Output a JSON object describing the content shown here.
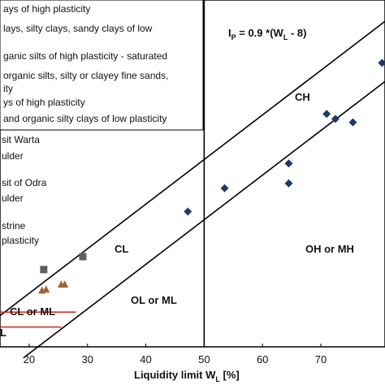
{
  "chart_data": {
    "type": "scatter",
    "title": "",
    "xlabel": "Liquidity limit  W_L [%]",
    "xlabel_main": "Liquidity limit  W",
    "xlabel_sub": "L",
    "xlabel_tail": " [%]",
    "ylabel": "",
    "xlim": [
      15,
      81
    ],
    "ylim": [
      0,
      70
    ],
    "x_ticks": [
      "20",
      "30",
      "40",
      "50",
      "60",
      "70"
    ],
    "x_tick_values": [
      20,
      30,
      40,
      50,
      60,
      70
    ],
    "grid": false,
    "vertical_line_x": 50,
    "a_line": {
      "label_prefix": "I",
      "label_sub": "P",
      "label_rest": " = 0.9 *(W",
      "label_sub2": "L",
      "label_end": " - 8)",
      "slope": 0.9,
      "offset": 8
    },
    "zones": [
      "CH",
      "CL",
      "OH or MH",
      "OL or ML",
      "CL or ML",
      "L"
    ],
    "legend": [
      "ays of high plasticity",
      "lays, silty clays, sandy clays of low",
      "ganic silts of high plasticity - saturated",
      "organic silts, silty or clayey fine sands,",
      "ity",
      "ys of high plasticity",
      "and organic silty clays of low plasticity"
    ],
    "side_labels": [
      "sit Warta",
      "ulder",
      "sit of Odra",
      "ulder",
      "strine",
      "plasticity"
    ],
    "series": [
      {
        "marker": "diamond",
        "color": "#1f3a68",
        "points": [
          [
            47.2,
            27.3
          ],
          [
            53.5,
            32.0
          ],
          [
            64.5,
            33.0
          ],
          [
            64.5,
            37.0
          ],
          [
            71.0,
            47.0
          ],
          [
            72.5,
            46.0
          ],
          [
            75.5,
            45.3
          ],
          [
            80.5,
            57.3
          ]
        ]
      },
      {
        "marker": "square",
        "color": "#5f5f5f",
        "points": [
          [
            22.5,
            15.6
          ],
          [
            29.2,
            18.2
          ]
        ]
      },
      {
        "marker": "triangle",
        "color": "#a0643a",
        "points": [
          [
            22.2,
            11.4
          ],
          [
            22.9,
            11.6
          ],
          [
            25.5,
            12.6
          ],
          [
            26.1,
            12.6
          ]
        ]
      }
    ],
    "red_segments": [
      {
        "x1": 15,
        "x2": 28,
        "y": 7
      },
      {
        "x1": 15,
        "x2": 25.5,
        "y": 4
      }
    ]
  }
}
